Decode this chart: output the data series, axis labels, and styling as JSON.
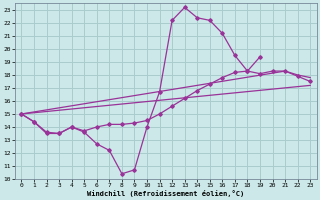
{
  "background_color": "#cce8e8",
  "grid_color": "#aacccc",
  "line_color": "#993399",
  "xlabel": "Windchill (Refroidissement éolien,°C)",
  "xlim": [
    -0.5,
    23.5
  ],
  "ylim": [
    10,
    23.5
  ],
  "xticks": [
    0,
    1,
    2,
    3,
    4,
    5,
    6,
    7,
    8,
    9,
    10,
    11,
    12,
    13,
    14,
    15,
    16,
    17,
    18,
    19,
    20,
    21,
    22,
    23
  ],
  "yticks": [
    10,
    11,
    12,
    13,
    14,
    15,
    16,
    17,
    18,
    19,
    20,
    21,
    22,
    23
  ],
  "curve1_x": [
    0,
    1,
    2,
    3,
    4,
    5,
    6,
    7,
    8,
    9,
    10,
    11,
    12,
    13,
    14,
    15,
    16,
    17,
    18,
    19
  ],
  "curve1_y": [
    15.0,
    14.4,
    13.5,
    13.5,
    14.0,
    13.6,
    12.7,
    12.2,
    10.4,
    10.7,
    14.0,
    16.7,
    22.2,
    23.2,
    22.4,
    22.2,
    21.2,
    19.5,
    18.3,
    19.4
  ],
  "curve2_x": [
    0,
    1,
    2,
    3,
    4,
    5,
    6,
    7,
    8,
    9,
    10,
    11,
    12,
    13,
    14,
    15,
    16,
    17,
    18,
    19,
    20,
    21,
    22,
    23
  ],
  "curve2_y": [
    15.0,
    14.4,
    13.6,
    13.5,
    14.0,
    13.7,
    14.0,
    14.2,
    14.2,
    14.3,
    14.5,
    15.0,
    15.6,
    16.2,
    16.8,
    17.3,
    17.8,
    18.2,
    18.3,
    18.1,
    18.3,
    18.3,
    17.9,
    17.5
  ],
  "curve3_x": [
    0,
    21,
    22,
    23
  ],
  "curve3_y": [
    15.0,
    18.3,
    18.0,
    17.8
  ],
  "curve4_x": [
    0,
    23
  ],
  "curve4_y": [
    15.0,
    17.2
  ]
}
